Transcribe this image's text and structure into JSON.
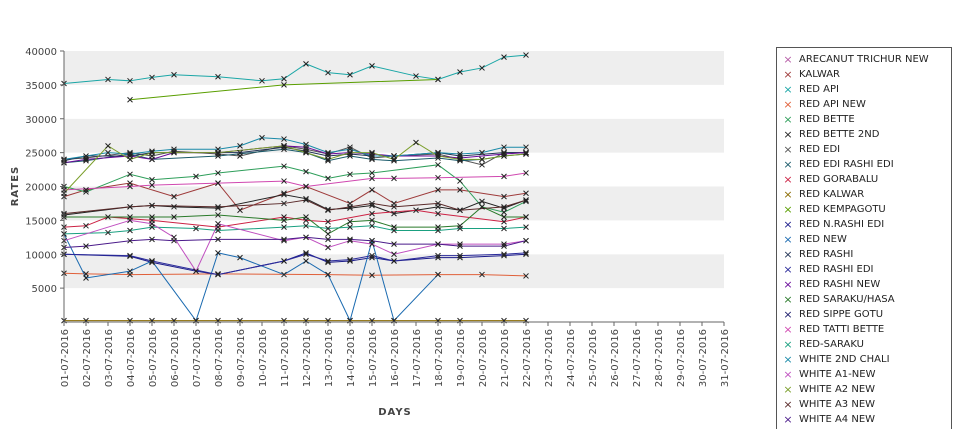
{
  "chart_data": {
    "type": "line",
    "xlabel": "DAYS",
    "ylabel": "RATES",
    "ylim": [
      0,
      40000
    ],
    "yticks": [
      5000,
      10000,
      15000,
      20000,
      25000,
      30000,
      35000,
      40000
    ],
    "categories": [
      "01-07-2016",
      "02-07-2016",
      "03-07-2016",
      "04-07-2016",
      "05-07-2016",
      "06-07-2016",
      "07-07-2016",
      "08-07-2016",
      "09-07-2016",
      "10-07-2016",
      "11-07-2016",
      "12-07-2016",
      "13-07-2016",
      "14-07-2016",
      "15-07-2016",
      "16-07-2016",
      "17-07-2016",
      "18-07-2016",
      "19-07-2016",
      "20-07-2016",
      "21-07-2016",
      "22-07-2016",
      "23-07-2016",
      "24-07-2016",
      "25-07-2016",
      "26-07-2016",
      "27-07-2016",
      "28-07-2016",
      "29-07-2016",
      "30-07-2016",
      "31-07-2016"
    ],
    "grid": "alternating horizontal bands",
    "legend_position": "right",
    "series": [
      {
        "name": "ARECANUT TRICHUR NEW",
        "color": "#b65ba6",
        "values": [
          null,
          null,
          null,
          null,
          null,
          null,
          null,
          null,
          null,
          null,
          null,
          null,
          null,
          null,
          null,
          null,
          null,
          null,
          null,
          null,
          null,
          null,
          null,
          null,
          null,
          null,
          null,
          null,
          null,
          null,
          null
        ]
      },
      {
        "name": "KALWAR",
        "color": "#9e3a3a",
        "values": [
          18500,
          19500,
          null,
          20500,
          null,
          18500,
          null,
          20500,
          16500,
          null,
          19000,
          20000,
          null,
          17500,
          19500,
          17500,
          null,
          19500,
          19500,
          null,
          18500,
          19000,
          null,
          null,
          null,
          null,
          null,
          null,
          null,
          null,
          null
        ]
      },
      {
        "name": "RED API",
        "color": "#1aa6a6",
        "values": [
          35200,
          null,
          35800,
          35600,
          36100,
          36500,
          null,
          36200,
          null,
          35600,
          35900,
          38100,
          36800,
          36500,
          37800,
          null,
          36300,
          35800,
          36900,
          37500,
          39100,
          39400,
          null,
          null,
          null,
          null,
          null,
          null,
          null,
          null,
          null
        ]
      },
      {
        "name": "RED API NEW",
        "color": "#e0603a",
        "values": [
          7200,
          7100,
          null,
          7000,
          null,
          null,
          null,
          7100,
          null,
          null,
          null,
          null,
          7000,
          null,
          6900,
          null,
          null,
          7000,
          null,
          7000,
          null,
          6800,
          null,
          null,
          null,
          null,
          null,
          null,
          null,
          null,
          null
        ]
      },
      {
        "name": "RED BETTE",
        "color": "#2e9e5a",
        "values": [
          20000,
          19200,
          null,
          21800,
          21000,
          null,
          21500,
          22000,
          null,
          null,
          23000,
          22200,
          21200,
          21800,
          22000,
          null,
          null,
          23200,
          20800,
          17000,
          16200,
          17800,
          null,
          null,
          null,
          null,
          null,
          null,
          null,
          null,
          null
        ]
      },
      {
        "name": "RED BETTE 2ND",
        "color": "#222222",
        "values": [
          15800,
          null,
          null,
          17000,
          17200,
          17000,
          null,
          16800,
          null,
          null,
          18800,
          18200,
          16600,
          16800,
          17200,
          16000,
          null,
          17000,
          16500,
          17800,
          16800,
          18000,
          null,
          null,
          null,
          null,
          null,
          null,
          null,
          null,
          null
        ]
      },
      {
        "name": "RED EDI",
        "color": "#555555",
        "values": [
          24000,
          24200,
          null,
          25000,
          24500,
          25200,
          null,
          24800,
          24500,
          null,
          26000,
          25500,
          24800,
          25800,
          24200,
          24500,
          null,
          24800,
          24000,
          23200,
          25000,
          25000,
          null,
          null,
          null,
          null,
          null,
          null,
          null,
          null,
          null
        ]
      },
      {
        "name": "RED EDI RASHI EDI",
        "color": "#1a5a6a",
        "values": [
          23500,
          23800,
          null,
          24800,
          24000,
          null,
          null,
          24500,
          null,
          null,
          25500,
          25000,
          23800,
          24500,
          24000,
          23800,
          null,
          24200,
          23800,
          24000,
          24500,
          24800,
          null,
          null,
          null,
          null,
          null,
          null,
          null,
          null,
          null
        ]
      },
      {
        "name": "RED GORABALU",
        "color": "#cc2244",
        "values": [
          14000,
          14200,
          15500,
          null,
          15000,
          null,
          null,
          14000,
          null,
          null,
          15500,
          15000,
          14800,
          null,
          16000,
          null,
          16500,
          16000,
          null,
          null,
          14800,
          15500,
          null,
          null,
          null,
          null,
          null,
          null,
          null,
          null,
          null
        ]
      },
      {
        "name": "RED KALWAR",
        "color": "#8a6a00",
        "values": [
          200,
          200,
          null,
          200,
          200,
          200,
          200,
          200,
          200,
          null,
          200,
          200,
          200,
          200,
          200,
          200,
          null,
          200,
          200,
          null,
          200,
          200,
          null,
          null,
          null,
          null,
          null,
          null,
          null,
          null,
          null
        ]
      },
      {
        "name": "RED KEMPAGOTU",
        "color": "#5a9e00",
        "values": [
          null,
          null,
          null,
          32800,
          null,
          null,
          null,
          null,
          null,
          null,
          35000,
          null,
          null,
          null,
          null,
          null,
          null,
          35800,
          null,
          null,
          null,
          null,
          null,
          null,
          null,
          null,
          null,
          null,
          null,
          null,
          null
        ]
      },
      {
        "name": "RED N.RASHI EDI",
        "color": "#1a1a8a",
        "values": [
          10000,
          null,
          null,
          9700,
          8800,
          null,
          7500,
          7000,
          null,
          null,
          9000,
          10200,
          8800,
          9000,
          9500,
          9000,
          null,
          9500,
          9500,
          null,
          9800,
          10000,
          null,
          null,
          null,
          null,
          null,
          null,
          null,
          null,
          null
        ]
      },
      {
        "name": "RED NEW",
        "color": "#1a6ab0",
        "values": [
          13000,
          6500,
          null,
          7500,
          9000,
          null,
          200,
          10200,
          9500,
          null,
          7000,
          9000,
          7000,
          200,
          12000,
          200,
          null,
          7000,
          null,
          null,
          null,
          null,
          null,
          null,
          null,
          null,
          null,
          null,
          null,
          null,
          null
        ]
      },
      {
        "name": "RED RASHI",
        "color": "#223355",
        "values": [
          23800,
          24500,
          null,
          24500,
          25000,
          25000,
          null,
          25000,
          25000,
          null,
          25800,
          25200,
          24500,
          24800,
          24500,
          24500,
          null,
          25000,
          24500,
          null,
          25000,
          25000,
          null,
          null,
          null,
          null,
          null,
          null,
          null,
          null,
          null
        ]
      },
      {
        "name": "RED RASHI EDI",
        "color": "#2a2a9a",
        "values": [
          10000,
          null,
          null,
          9800,
          9000,
          null,
          null,
          7000,
          null,
          null,
          9000,
          10000,
          9000,
          9200,
          9800,
          9000,
          null,
          9800,
          9800,
          null,
          10000,
          10200,
          null,
          null,
          null,
          null,
          null,
          null,
          null,
          null,
          null
        ]
      },
      {
        "name": "RED RASHI NEW",
        "color": "#6a0a9a",
        "values": [
          23500,
          24000,
          null,
          24500,
          24000,
          25000,
          null,
          25000,
          null,
          null,
          26000,
          25800,
          24800,
          25000,
          24800,
          24500,
          null,
          24500,
          24200,
          null,
          24800,
          25000,
          null,
          null,
          null,
          null,
          null,
          null,
          null,
          null,
          null
        ]
      },
      {
        "name": "RED SARAKU/HASA",
        "color": "#2a7a2a",
        "values": [
          15500,
          null,
          null,
          15500,
          15500,
          15500,
          null,
          15800,
          null,
          null,
          15000,
          15500,
          13000,
          14800,
          15000,
          14000,
          null,
          14000,
          14200,
          17000,
          15500,
          15500,
          null,
          null,
          null,
          null,
          null,
          null,
          null,
          null,
          null
        ]
      },
      {
        "name": "RED SIPPE GOTU",
        "color": "#1a1a6a",
        "values": [
          null,
          null,
          null,
          null,
          null,
          null,
          null,
          null,
          null,
          null,
          null,
          null,
          null,
          null,
          null,
          null,
          null,
          null,
          null,
          null,
          null,
          null,
          null,
          null,
          null,
          null,
          null,
          null,
          null,
          null,
          null
        ]
      },
      {
        "name": "RED TATTI BETTE",
        "color": "#d048b0",
        "values": [
          19500,
          null,
          null,
          20000,
          20200,
          null,
          null,
          20500,
          null,
          null,
          20800,
          20000,
          null,
          null,
          21200,
          21200,
          null,
          21300,
          null,
          null,
          21500,
          22000,
          null,
          null,
          null,
          null,
          null,
          null,
          null,
          null,
          null
        ]
      },
      {
        "name": "RED-SARAKU",
        "color": "#1aa080",
        "values": [
          13000,
          null,
          13200,
          13500,
          14000,
          null,
          13800,
          13500,
          null,
          null,
          14000,
          14200,
          13800,
          14000,
          14200,
          13500,
          null,
          13500,
          13800,
          null,
          13800,
          14000,
          null,
          null,
          null,
          null,
          null,
          null,
          null,
          null,
          null
        ]
      },
      {
        "name": "WHITE 2ND CHALI",
        "color": "#1a8aa8",
        "values": [
          24000,
          null,
          25000,
          24800,
          25200,
          25500,
          null,
          25500,
          26000,
          27200,
          27000,
          26200,
          25000,
          25500,
          24500,
          24500,
          null,
          25000,
          24800,
          25000,
          25800,
          25800,
          null,
          null,
          null,
          null,
          null,
          null,
          null,
          null,
          null
        ]
      },
      {
        "name": "WHITE A1-NEW",
        "color": "#c050c0",
        "values": [
          12000,
          null,
          null,
          15000,
          14500,
          12500,
          7500,
          14500,
          null,
          null,
          12000,
          12500,
          11000,
          12000,
          11500,
          10000,
          null,
          11500,
          11500,
          null,
          11500,
          12000,
          null,
          null,
          null,
          null,
          null,
          null,
          null,
          null,
          null
        ]
      },
      {
        "name": "WHITE A2 NEW",
        "color": "#7a9e2a",
        "values": [
          19000,
          null,
          26000,
          24000,
          25000,
          null,
          null,
          25000,
          null,
          null,
          26000,
          25000,
          24000,
          25000,
          25000,
          24000,
          26500,
          24500,
          24000,
          24000,
          24500,
          24800,
          null,
          null,
          null,
          null,
          null,
          null,
          null,
          null,
          null
        ]
      },
      {
        "name": "WHITE A3 NEW",
        "color": "#5a2a2a",
        "values": [
          16000,
          null,
          null,
          17000,
          17200,
          null,
          null,
          17000,
          null,
          null,
          17500,
          18000,
          16500,
          17000,
          17500,
          17000,
          null,
          17500,
          16500,
          null,
          17000,
          18000,
          null,
          null,
          null,
          null,
          null,
          null,
          null,
          null,
          null
        ]
      },
      {
        "name": "WHITE A4 NEW",
        "color": "#4a1a8a",
        "values": [
          11000,
          11200,
          null,
          12000,
          12200,
          12000,
          null,
          12200,
          null,
          null,
          12200,
          12500,
          12200,
          12200,
          12000,
          11500,
          null,
          11500,
          11200,
          null,
          11200,
          12000,
          null,
          null,
          null,
          null,
          null,
          null,
          null,
          null,
          null
        ]
      }
    ]
  }
}
